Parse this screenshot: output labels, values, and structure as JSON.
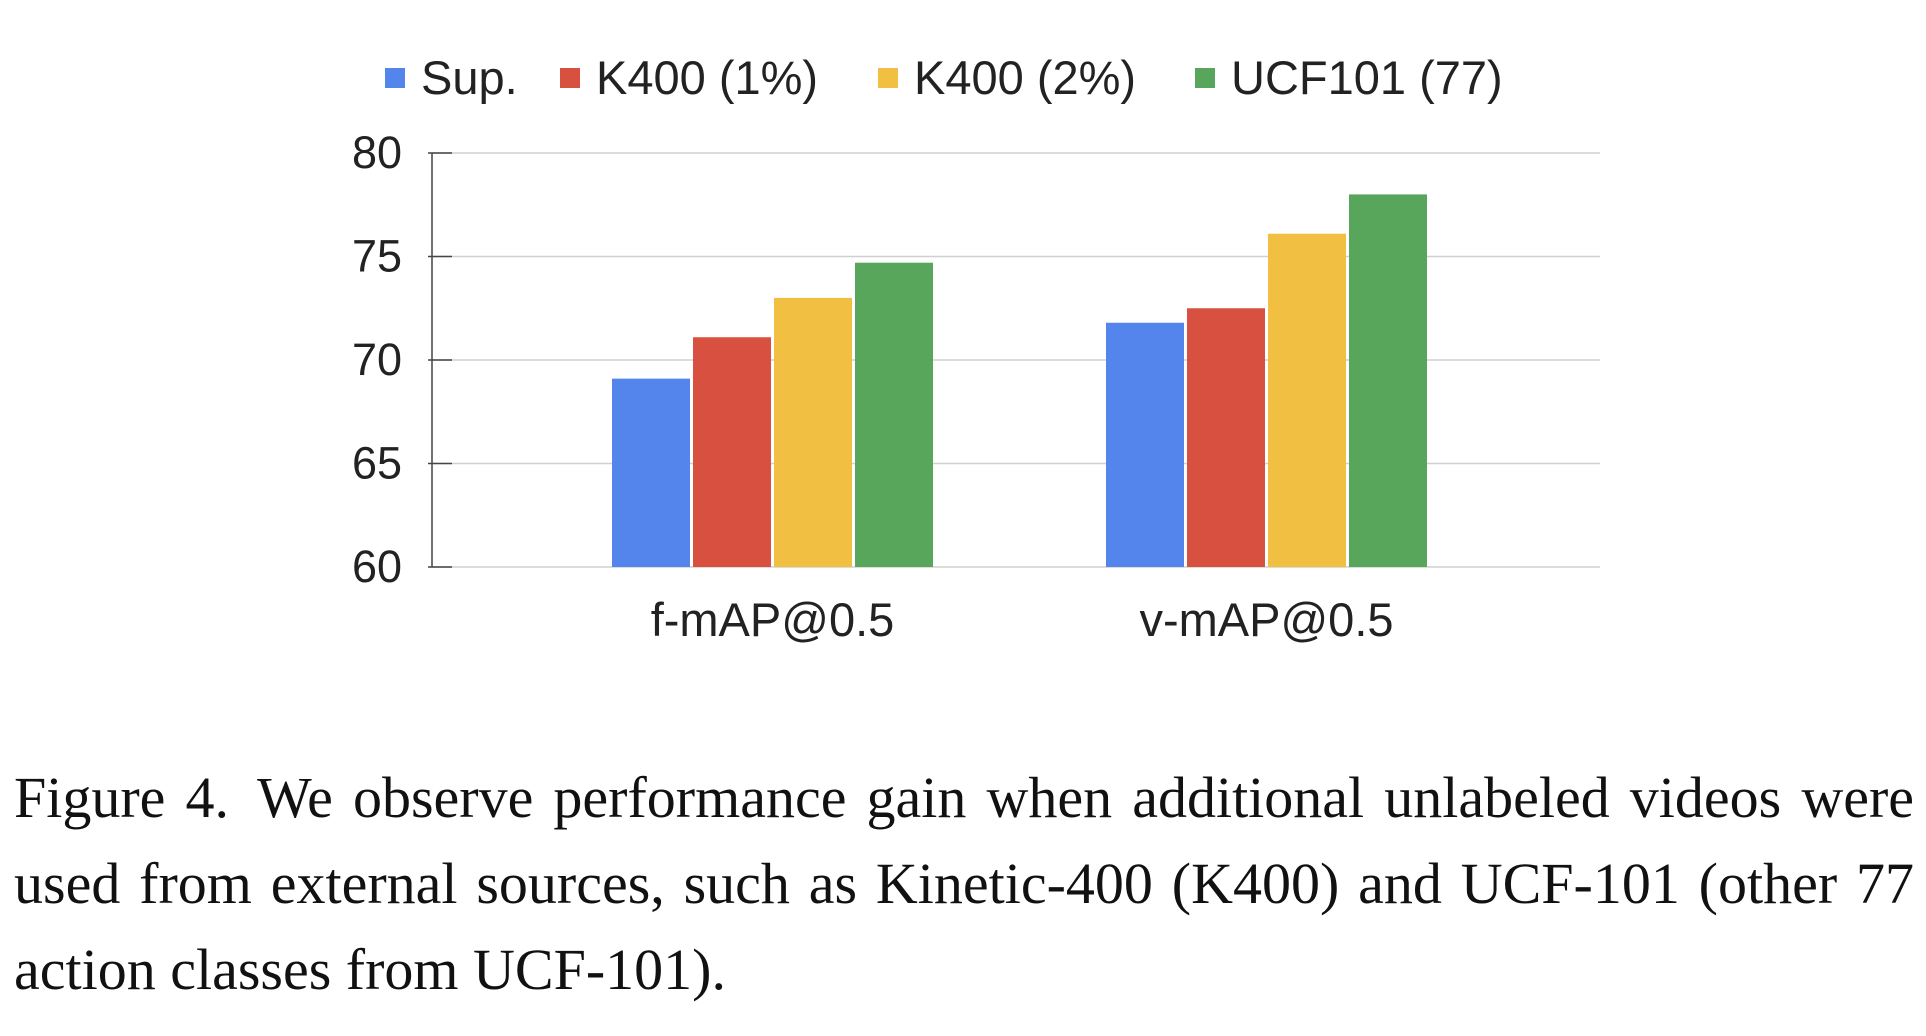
{
  "chart_data": {
    "type": "bar",
    "categories": [
      "f-mAP@0.5",
      "v-mAP@0.5"
    ],
    "series": [
      {
        "name": "Sup.",
        "values": [
          69.1,
          71.8
        ],
        "color": "#5485EC"
      },
      {
        "name": "K400 (1%)",
        "values": [
          71.1,
          72.5
        ],
        "color": "#D85140"
      },
      {
        "name": "K400 (2%)",
        "values": [
          73.0,
          76.1
        ],
        "color": "#F1BF42"
      },
      {
        "name": "UCF101 (77)",
        "values": [
          74.7,
          78.0
        ],
        "color": "#58A65C"
      }
    ],
    "ylim": [
      60,
      80
    ],
    "yticks": [
      "60",
      "65",
      "70",
      "75",
      "80"
    ],
    "grid": true,
    "legend": "top",
    "title": "",
    "xlabel": "",
    "ylabel": ""
  },
  "caption": {
    "label": "Figure 4.",
    "text": "We observe performance gain when additional unlabeled videos were used from external sources, such as Kinetic-400 (K400) and UCF-101 (other 77 action classes from UCF-101)."
  }
}
